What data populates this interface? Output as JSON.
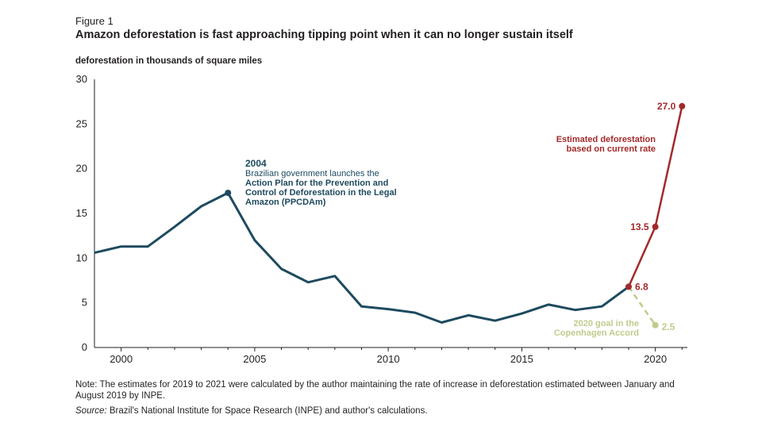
{
  "figure_label": "Figure 1",
  "title": "Amazon deforestation is fast approaching tipping point when it can no longer sustain itself",
  "y_unit_label": "deforestation in thousands of square miles",
  "note": "Note: The estimates for 2019 to 2021 were calculated by the author maintaining the rate of increase in deforestation estimated between January and August 2019 by INPE.",
  "source_label": "Source:",
  "source_text": " Brazil's National Institute for Space Research (INPE) and author's calculations.",
  "colors": {
    "historical": "#1e4a5f",
    "estimated": "#a32a2a",
    "goal": "#bfcc8c",
    "axis": "#231f20"
  },
  "chart_data": {
    "type": "line",
    "xlim": [
      1999,
      2021.2
    ],
    "ylim": [
      0,
      30
    ],
    "x_ticks": [
      2000,
      2005,
      2010,
      2015,
      2020
    ],
    "y_ticks": [
      0,
      5,
      10,
      15,
      20,
      25,
      30
    ],
    "series": [
      {
        "key": "historical",
        "x": [
          1999,
          2000,
          2001,
          2002,
          2003,
          2004,
          2005,
          2006,
          2007,
          2008,
          2009,
          2010,
          2011,
          2012,
          2013,
          2014,
          2015,
          2016,
          2017,
          2018,
          2019
        ],
        "y": [
          10.6,
          11.3,
          11.3,
          13.5,
          15.8,
          17.3,
          12.0,
          8.8,
          7.3,
          8.0,
          4.6,
          4.3,
          3.9,
          2.8,
          3.6,
          3.0,
          3.8,
          4.8,
          4.2,
          4.6,
          6.8
        ]
      },
      {
        "key": "estimated",
        "x": [
          2019,
          2020,
          2021
        ],
        "y": [
          6.8,
          13.5,
          27.0
        ]
      },
      {
        "key": "goal",
        "x": [
          2019,
          2020
        ],
        "y": [
          6.8,
          2.5
        ]
      }
    ],
    "point_labels": [
      {
        "series": "estimated",
        "x": 2019,
        "y": 6.8,
        "text": "6.8"
      },
      {
        "series": "estimated",
        "x": 2020,
        "y": 13.5,
        "text": "13.5"
      },
      {
        "series": "estimated",
        "x": 2021,
        "y": 27.0,
        "text": "27.0"
      },
      {
        "series": "goal",
        "x": 2020,
        "y": 2.5,
        "text": "2.5"
      }
    ],
    "annotations": {
      "policy": {
        "year": "2004",
        "line1": "Brazilian government launches the",
        "bold_lines": [
          "Action Plan for the Prevention and",
          "Control of Deforestation in the Legal",
          "Amazon (PPCDAm)"
        ]
      },
      "estimated": [
        "Estimated deforestation",
        "based on current rate"
      ],
      "goal": [
        "2020 goal in the",
        "Copenhagen Accord"
      ]
    }
  }
}
